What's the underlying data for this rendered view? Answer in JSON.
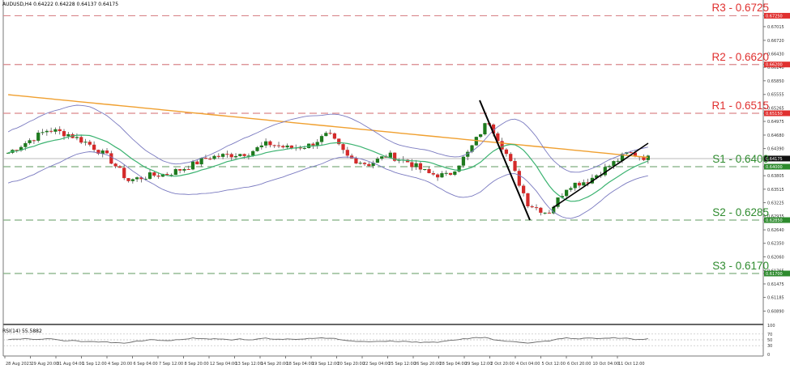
{
  "header": {
    "title": "AUDUSD,H4  0.64222 0.64228 0.64137 0.64175"
  },
  "levels": [
    {
      "name": "R3",
      "value": 0.6725,
      "label": "R3 - 0.6725",
      "axis_label": "0.67250",
      "color": "#e0302f",
      "type": "resistance"
    },
    {
      "name": "R2",
      "value": 0.662,
      "label": "R2 - 0.6620",
      "axis_label": "0.66200",
      "color": "#e0302f",
      "type": "resistance"
    },
    {
      "name": "R1",
      "value": 0.6515,
      "label": "R1 - 0.6515",
      "axis_label": "0.65150",
      "color": "#e0302f",
      "type": "resistance"
    },
    {
      "name": "S1",
      "value": 0.64,
      "label": "S1 - 0.6400",
      "axis_label": "0.64000",
      "color": "#2e8b2e",
      "type": "support"
    },
    {
      "name": "S2",
      "value": 0.6285,
      "label": "S2 - 0.6285",
      "axis_label": "0.62850",
      "color": "#2e8b2e",
      "type": "support"
    },
    {
      "name": "S3",
      "value": 0.617,
      "label": "S3 - 0.6170",
      "axis_label": "0.61700",
      "color": "#2e8b2e",
      "type": "support"
    }
  ],
  "rsi": {
    "label": "RSI(14) 55.5882",
    "levels": [
      "100",
      "70",
      "50",
      "30",
      "0"
    ]
  },
  "current_price": "0.64175",
  "chart_data": {
    "type": "candlestick",
    "title": "AUDUSD,H4",
    "ohlc_header": {
      "open": 0.64222,
      "high": 0.64228,
      "low": 0.64137,
      "close": 0.64175
    },
    "y_ticks": [
      "0.67250",
      "0.67015",
      "0.66720",
      "0.66430",
      "0.66200",
      "0.66140",
      "0.65850",
      "0.65555",
      "0.65265",
      "0.65150",
      "0.64975",
      "0.64680",
      "0.64390",
      "0.64175",
      "0.64000",
      "0.63805",
      "0.63515",
      "0.63225",
      "0.62935",
      "0.62850",
      "0.62640",
      "0.62350",
      "0.62060",
      "0.61765",
      "0.61700",
      "0.61475",
      "0.61185",
      "0.60890",
      "0.60600"
    ],
    "x_ticks": [
      "28 Aug 2023",
      "29 Aug 20:00",
      "31 Aug 04:00",
      "1 Sep 12:00",
      "4 Sep 20:00",
      "6 Sep 04:00",
      "7 Sep 12:00",
      "8 Sep 20:00",
      "12 Sep 04:00",
      "13 Sep 12:00",
      "14 Sep 20:00",
      "18 Sep 04:00",
      "19 Sep 12:00",
      "20 Sep 20:00",
      "22 Sep 04:00",
      "25 Sep 12:00",
      "26 Sep 20:00",
      "28 Sep 04:00",
      "29 Sep 12:00",
      "2 Oct 20:00",
      "4 Oct 04:00",
      "5 Oct 12:00",
      "6 Oct 20:00",
      "10 Oct 04:00",
      "11 Oct 12:00"
    ],
    "ylim": [
      0.606,
      0.6756
    ],
    "overlays": [
      "Bollinger Bands (blue)",
      "Moving average 200 (orange)",
      "Moving average 50 (green)",
      "Downtrend line (black)",
      "Uptrend line (black)"
    ],
    "series": [
      {
        "name": "close_approx",
        "x": [
          "28 Aug",
          "29 Aug",
          "30 Aug",
          "31 Aug",
          "1 Sep",
          "4 Sep",
          "5 Sep",
          "6 Sep",
          "7 Sep",
          "8 Sep",
          "11 Sep",
          "12 Sep",
          "13 Sep",
          "14 Sep",
          "15 Sep",
          "18 Sep",
          "19 Sep",
          "20 Sep",
          "21 Sep",
          "22 Sep",
          "25 Sep",
          "26 Sep",
          "27 Sep",
          "28 Sep",
          "29 Sep",
          "2 Oct",
          "3 Oct",
          "4 Oct",
          "5 Oct",
          "6 Oct",
          "9 Oct",
          "10 Oct",
          "11 Oct"
        ],
        "values": [
          0.643,
          0.6455,
          0.648,
          0.647,
          0.645,
          0.642,
          0.637,
          0.638,
          0.6385,
          0.64,
          0.642,
          0.6425,
          0.643,
          0.645,
          0.644,
          0.6445,
          0.647,
          0.642,
          0.6405,
          0.6425,
          0.641,
          0.6385,
          0.638,
          0.643,
          0.65,
          0.642,
          0.632,
          0.63,
          0.636,
          0.637,
          0.64,
          0.643,
          0.6418
        ]
      }
    ],
    "rsi": {
      "name": "RSI(14)",
      "last": 55.5882,
      "levels": [
        70,
        50,
        30
      ],
      "range": [
        0,
        100
      ]
    }
  }
}
